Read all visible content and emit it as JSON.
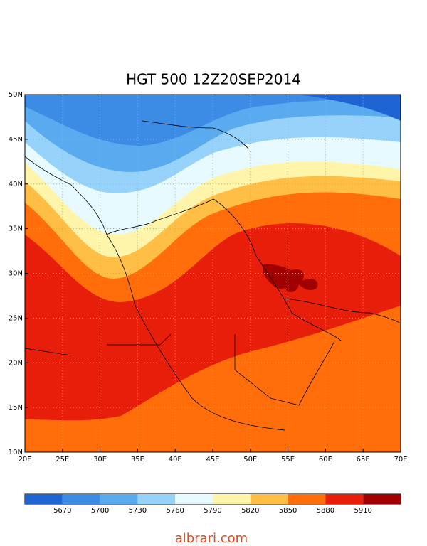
{
  "title": "HGT 500 12Z20SEP2014",
  "lat_labels": [
    "50N",
    "45N",
    "40N",
    "35N",
    "30N",
    "25N",
    "20N",
    "15N",
    "10N"
  ],
  "lon_labels": [
    "20E",
    "25E",
    "30E",
    "35E",
    "40E",
    "45E",
    "50E",
    "55E",
    "60E",
    "65E",
    "70E"
  ],
  "colorbar": {
    "colors": [
      "#1e64d2",
      "#3c8ce6",
      "#5aaaf0",
      "#96d2fa",
      "#e6faff",
      "#fff5aa",
      "#ffbe46",
      "#ff6e0a",
      "#e61e0a",
      "#a00000"
    ],
    "labels": [
      "5670",
      "5700",
      "5730",
      "5760",
      "5790",
      "5820",
      "5850",
      "5880",
      "5910"
    ]
  },
  "watermark": "albrari.com"
}
